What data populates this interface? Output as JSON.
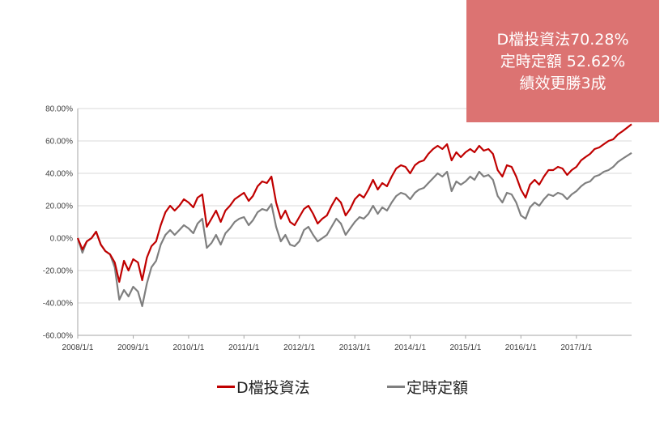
{
  "callout": {
    "line1": "D檔投資法70.28%",
    "line2": "定時定額 52.62%",
    "line3": "績效更勝3成",
    "background": "#dc7372"
  },
  "chart_data": {
    "type": "line",
    "title": "",
    "xlabel": "",
    "ylabel": "",
    "ylim": [
      -0.6,
      0.8
    ],
    "y_ticks": [
      0.8,
      0.6,
      0.4,
      0.2,
      0.0,
      -0.2,
      -0.4,
      -0.6
    ],
    "y_tick_labels": [
      "80.00%",
      "60.00%",
      "40.00%",
      "20.00%",
      "0.00%",
      "-20.00%",
      "-40.00%",
      "-60.00%"
    ],
    "x_ticks": [
      "2008-01-01",
      "2009-01-01",
      "2010-01-01",
      "2011-01-01",
      "2012-01-01",
      "2013-01-01",
      "2014-01-01",
      "2015-01-01",
      "2016-01-01",
      "2017-01-01"
    ],
    "x_tick_labels": [
      "2008/1/1",
      "2009/1/1",
      "2010/1/1",
      "2011/1/1",
      "2012/1/1",
      "2013/1/1",
      "2014/1/1",
      "2015/1/1",
      "2016/1/1",
      "2017/1/1"
    ],
    "xlim": [
      "2008-01-01",
      "2017-12-31"
    ],
    "grid": "horizontal",
    "legend_position": "bottom",
    "series": [
      {
        "name": "D檔投資法",
        "color": "#c00000",
        "points": [
          [
            "2008-01-01",
            0.0
          ],
          [
            "2008-02-01",
            -0.07
          ],
          [
            "2008-03-01",
            -0.02
          ],
          [
            "2008-04-01",
            0.0
          ],
          [
            "2008-05-01",
            0.04
          ],
          [
            "2008-06-01",
            -0.04
          ],
          [
            "2008-07-01",
            -0.08
          ],
          [
            "2008-08-01",
            -0.1
          ],
          [
            "2008-09-01",
            -0.15
          ],
          [
            "2008-10-01",
            -0.27
          ],
          [
            "2008-11-01",
            -0.14
          ],
          [
            "2008-12-01",
            -0.2
          ],
          [
            "2009-01-01",
            -0.13
          ],
          [
            "2009-02-01",
            -0.15
          ],
          [
            "2009-03-01",
            -0.26
          ],
          [
            "2009-04-01",
            -0.12
          ],
          [
            "2009-05-01",
            -0.05
          ],
          [
            "2009-06-01",
            -0.02
          ],
          [
            "2009-07-01",
            0.08
          ],
          [
            "2009-08-01",
            0.16
          ],
          [
            "2009-09-01",
            0.2
          ],
          [
            "2009-10-01",
            0.17
          ],
          [
            "2009-11-01",
            0.2
          ],
          [
            "2009-12-01",
            0.24
          ],
          [
            "2010-01-01",
            0.22
          ],
          [
            "2010-02-01",
            0.19
          ],
          [
            "2010-03-01",
            0.25
          ],
          [
            "2010-04-01",
            0.27
          ],
          [
            "2010-05-01",
            0.07
          ],
          [
            "2010-06-01",
            0.12
          ],
          [
            "2010-07-01",
            0.17
          ],
          [
            "2010-08-01",
            0.1
          ],
          [
            "2010-09-01",
            0.17
          ],
          [
            "2010-10-01",
            0.2
          ],
          [
            "2010-11-01",
            0.24
          ],
          [
            "2010-12-01",
            0.26
          ],
          [
            "2011-01-01",
            0.28
          ],
          [
            "2011-02-01",
            0.23
          ],
          [
            "2011-03-01",
            0.26
          ],
          [
            "2011-04-01",
            0.32
          ],
          [
            "2011-05-01",
            0.35
          ],
          [
            "2011-06-01",
            0.34
          ],
          [
            "2011-07-01",
            0.38
          ],
          [
            "2011-08-01",
            0.22
          ],
          [
            "2011-09-01",
            0.12
          ],
          [
            "2011-10-01",
            0.17
          ],
          [
            "2011-11-01",
            0.1
          ],
          [
            "2011-12-01",
            0.08
          ],
          [
            "2012-01-01",
            0.13
          ],
          [
            "2012-02-01",
            0.18
          ],
          [
            "2012-03-01",
            0.2
          ],
          [
            "2012-04-01",
            0.15
          ],
          [
            "2012-05-01",
            0.09
          ],
          [
            "2012-06-01",
            0.12
          ],
          [
            "2012-07-01",
            0.14
          ],
          [
            "2012-08-01",
            0.2
          ],
          [
            "2012-09-01",
            0.25
          ],
          [
            "2012-10-01",
            0.22
          ],
          [
            "2012-11-01",
            0.14
          ],
          [
            "2012-12-01",
            0.18
          ],
          [
            "2013-01-01",
            0.24
          ],
          [
            "2013-02-01",
            0.27
          ],
          [
            "2013-03-01",
            0.25
          ],
          [
            "2013-04-01",
            0.3
          ],
          [
            "2013-05-01",
            0.36
          ],
          [
            "2013-06-01",
            0.3
          ],
          [
            "2013-07-01",
            0.34
          ],
          [
            "2013-08-01",
            0.32
          ],
          [
            "2013-09-01",
            0.38
          ],
          [
            "2013-10-01",
            0.43
          ],
          [
            "2013-11-01",
            0.45
          ],
          [
            "2013-12-01",
            0.44
          ],
          [
            "2014-01-01",
            0.4
          ],
          [
            "2014-02-01",
            0.45
          ],
          [
            "2014-03-01",
            0.47
          ],
          [
            "2014-04-01",
            0.48
          ],
          [
            "2014-05-01",
            0.52
          ],
          [
            "2014-06-01",
            0.55
          ],
          [
            "2014-07-01",
            0.57
          ],
          [
            "2014-08-01",
            0.55
          ],
          [
            "2014-09-01",
            0.58
          ],
          [
            "2014-10-01",
            0.48
          ],
          [
            "2014-11-01",
            0.53
          ],
          [
            "2014-12-01",
            0.5
          ],
          [
            "2015-01-01",
            0.53
          ],
          [
            "2015-02-01",
            0.55
          ],
          [
            "2015-03-01",
            0.53
          ],
          [
            "2015-04-01",
            0.57
          ],
          [
            "2015-05-01",
            0.54
          ],
          [
            "2015-06-01",
            0.55
          ],
          [
            "2015-07-01",
            0.52
          ],
          [
            "2015-08-01",
            0.42
          ],
          [
            "2015-09-01",
            0.38
          ],
          [
            "2015-10-01",
            0.45
          ],
          [
            "2015-11-01",
            0.44
          ],
          [
            "2015-12-01",
            0.38
          ],
          [
            "2016-01-01",
            0.3
          ],
          [
            "2016-02-01",
            0.25
          ],
          [
            "2016-03-01",
            0.33
          ],
          [
            "2016-04-01",
            0.36
          ],
          [
            "2016-05-01",
            0.33
          ],
          [
            "2016-06-01",
            0.38
          ],
          [
            "2016-07-01",
            0.42
          ],
          [
            "2016-08-01",
            0.42
          ],
          [
            "2016-09-01",
            0.44
          ],
          [
            "2016-10-01",
            0.43
          ],
          [
            "2016-11-01",
            0.39
          ],
          [
            "2016-12-01",
            0.42
          ],
          [
            "2017-01-01",
            0.44
          ],
          [
            "2017-02-01",
            0.48
          ],
          [
            "2017-03-01",
            0.5
          ],
          [
            "2017-04-01",
            0.52
          ],
          [
            "2017-05-01",
            0.55
          ],
          [
            "2017-06-01",
            0.56
          ],
          [
            "2017-07-01",
            0.58
          ],
          [
            "2017-08-01",
            0.6
          ],
          [
            "2017-09-01",
            0.61
          ],
          [
            "2017-10-01",
            0.64
          ],
          [
            "2017-11-01",
            0.66
          ],
          [
            "2017-12-31",
            0.7028
          ]
        ]
      },
      {
        "name": "定時定額",
        "color": "#7f7f7f",
        "points": [
          [
            "2008-01-01",
            0.0
          ],
          [
            "2008-02-01",
            -0.09
          ],
          [
            "2008-03-01",
            -0.02
          ],
          [
            "2008-04-01",
            0.0
          ],
          [
            "2008-05-01",
            0.04
          ],
          [
            "2008-06-01",
            -0.04
          ],
          [
            "2008-07-01",
            -0.08
          ],
          [
            "2008-08-01",
            -0.1
          ],
          [
            "2008-09-01",
            -0.18
          ],
          [
            "2008-10-01",
            -0.38
          ],
          [
            "2008-11-01",
            -0.32
          ],
          [
            "2008-12-01",
            -0.36
          ],
          [
            "2009-01-01",
            -0.3
          ],
          [
            "2009-02-01",
            -0.33
          ],
          [
            "2009-03-01",
            -0.42
          ],
          [
            "2009-04-01",
            -0.28
          ],
          [
            "2009-05-01",
            -0.18
          ],
          [
            "2009-06-01",
            -0.14
          ],
          [
            "2009-07-01",
            -0.04
          ],
          [
            "2009-08-01",
            0.02
          ],
          [
            "2009-09-01",
            0.05
          ],
          [
            "2009-10-01",
            0.02
          ],
          [
            "2009-11-01",
            0.05
          ],
          [
            "2009-12-01",
            0.08
          ],
          [
            "2010-01-01",
            0.06
          ],
          [
            "2010-02-01",
            0.03
          ],
          [
            "2010-03-01",
            0.09
          ],
          [
            "2010-04-01",
            0.12
          ],
          [
            "2010-05-01",
            -0.06
          ],
          [
            "2010-06-01",
            -0.03
          ],
          [
            "2010-07-01",
            0.02
          ],
          [
            "2010-08-01",
            -0.04
          ],
          [
            "2010-09-01",
            0.03
          ],
          [
            "2010-10-01",
            0.06
          ],
          [
            "2010-11-01",
            0.1
          ],
          [
            "2010-12-01",
            0.12
          ],
          [
            "2011-01-01",
            0.13
          ],
          [
            "2011-02-01",
            0.08
          ],
          [
            "2011-03-01",
            0.11
          ],
          [
            "2011-04-01",
            0.16
          ],
          [
            "2011-05-01",
            0.18
          ],
          [
            "2011-06-01",
            0.17
          ],
          [
            "2011-07-01",
            0.21
          ],
          [
            "2011-08-01",
            0.07
          ],
          [
            "2011-09-01",
            -0.02
          ],
          [
            "2011-10-01",
            0.02
          ],
          [
            "2011-11-01",
            -0.04
          ],
          [
            "2011-12-01",
            -0.05
          ],
          [
            "2012-01-01",
            -0.02
          ],
          [
            "2012-02-01",
            0.05
          ],
          [
            "2012-03-01",
            0.07
          ],
          [
            "2012-04-01",
            0.02
          ],
          [
            "2012-05-01",
            -0.02
          ],
          [
            "2012-06-01",
            0.0
          ],
          [
            "2012-07-01",
            0.02
          ],
          [
            "2012-08-01",
            0.07
          ],
          [
            "2012-09-01",
            0.12
          ],
          [
            "2012-10-01",
            0.09
          ],
          [
            "2012-11-01",
            0.02
          ],
          [
            "2012-12-01",
            0.06
          ],
          [
            "2013-01-01",
            0.1
          ],
          [
            "2013-02-01",
            0.13
          ],
          [
            "2013-03-01",
            0.12
          ],
          [
            "2013-04-01",
            0.15
          ],
          [
            "2013-05-01",
            0.2
          ],
          [
            "2013-06-01",
            0.15
          ],
          [
            "2013-07-01",
            0.19
          ],
          [
            "2013-08-01",
            0.17
          ],
          [
            "2013-09-01",
            0.22
          ],
          [
            "2013-10-01",
            0.26
          ],
          [
            "2013-11-01",
            0.28
          ],
          [
            "2013-12-01",
            0.27
          ],
          [
            "2014-01-01",
            0.24
          ],
          [
            "2014-02-01",
            0.28
          ],
          [
            "2014-03-01",
            0.3
          ],
          [
            "2014-04-01",
            0.31
          ],
          [
            "2014-05-01",
            0.34
          ],
          [
            "2014-06-01",
            0.37
          ],
          [
            "2014-07-01",
            0.4
          ],
          [
            "2014-08-01",
            0.38
          ],
          [
            "2014-09-01",
            0.41
          ],
          [
            "2014-10-01",
            0.29
          ],
          [
            "2014-11-01",
            0.35
          ],
          [
            "2014-12-01",
            0.33
          ],
          [
            "2015-01-01",
            0.35
          ],
          [
            "2015-02-01",
            0.38
          ],
          [
            "2015-03-01",
            0.36
          ],
          [
            "2015-04-01",
            0.41
          ],
          [
            "2015-05-01",
            0.38
          ],
          [
            "2015-06-01",
            0.39
          ],
          [
            "2015-07-01",
            0.36
          ],
          [
            "2015-08-01",
            0.26
          ],
          [
            "2015-09-01",
            0.22
          ],
          [
            "2015-10-01",
            0.28
          ],
          [
            "2015-11-01",
            0.27
          ],
          [
            "2015-12-01",
            0.22
          ],
          [
            "2016-01-01",
            0.14
          ],
          [
            "2016-02-01",
            0.12
          ],
          [
            "2016-03-01",
            0.19
          ],
          [
            "2016-04-01",
            0.22
          ],
          [
            "2016-05-01",
            0.2
          ],
          [
            "2016-06-01",
            0.24
          ],
          [
            "2016-07-01",
            0.27
          ],
          [
            "2016-08-01",
            0.26
          ],
          [
            "2016-09-01",
            0.28
          ],
          [
            "2016-10-01",
            0.27
          ],
          [
            "2016-11-01",
            0.24
          ],
          [
            "2016-12-01",
            0.27
          ],
          [
            "2017-01-01",
            0.29
          ],
          [
            "2017-02-01",
            0.32
          ],
          [
            "2017-03-01",
            0.34
          ],
          [
            "2017-04-01",
            0.35
          ],
          [
            "2017-05-01",
            0.38
          ],
          [
            "2017-06-01",
            0.39
          ],
          [
            "2017-07-01",
            0.41
          ],
          [
            "2017-08-01",
            0.42
          ],
          [
            "2017-09-01",
            0.44
          ],
          [
            "2017-10-01",
            0.47
          ],
          [
            "2017-11-01",
            0.49
          ],
          [
            "2017-12-31",
            0.5262
          ]
        ]
      }
    ]
  }
}
